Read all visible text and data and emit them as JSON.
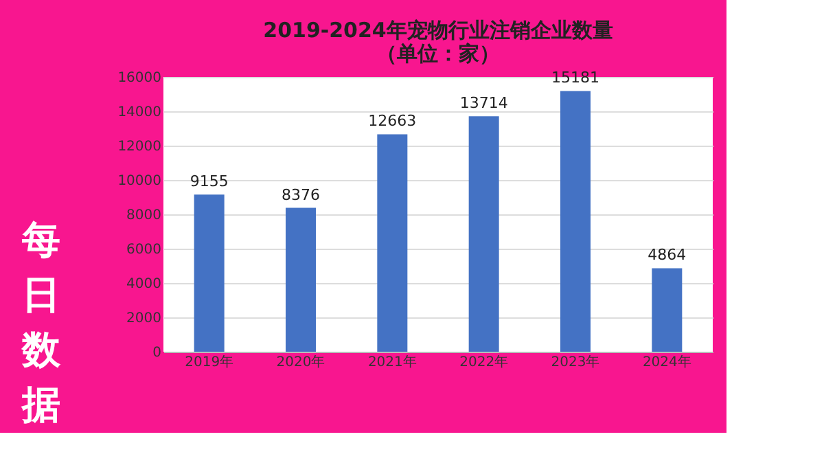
{
  "chart_data": {
    "type": "bar",
    "title": [
      "2019-2024年宠物行业注销企业数量",
      "（单位：家）"
    ],
    "categories": [
      "2019年",
      "2020年",
      "2021年",
      "2022年",
      "2023年",
      "2024年"
    ],
    "values": [
      9155,
      8376,
      12663,
      13714,
      15181,
      4864
    ],
    "color": "#4472c4",
    "ylim": [
      0,
      16000
    ],
    "yticks": [
      0,
      2000,
      4000,
      6000,
      8000,
      10000,
      12000,
      14000,
      16000
    ],
    "grid": "y",
    "data_labels": true,
    "annotations": [
      "每日数据"
    ]
  }
}
